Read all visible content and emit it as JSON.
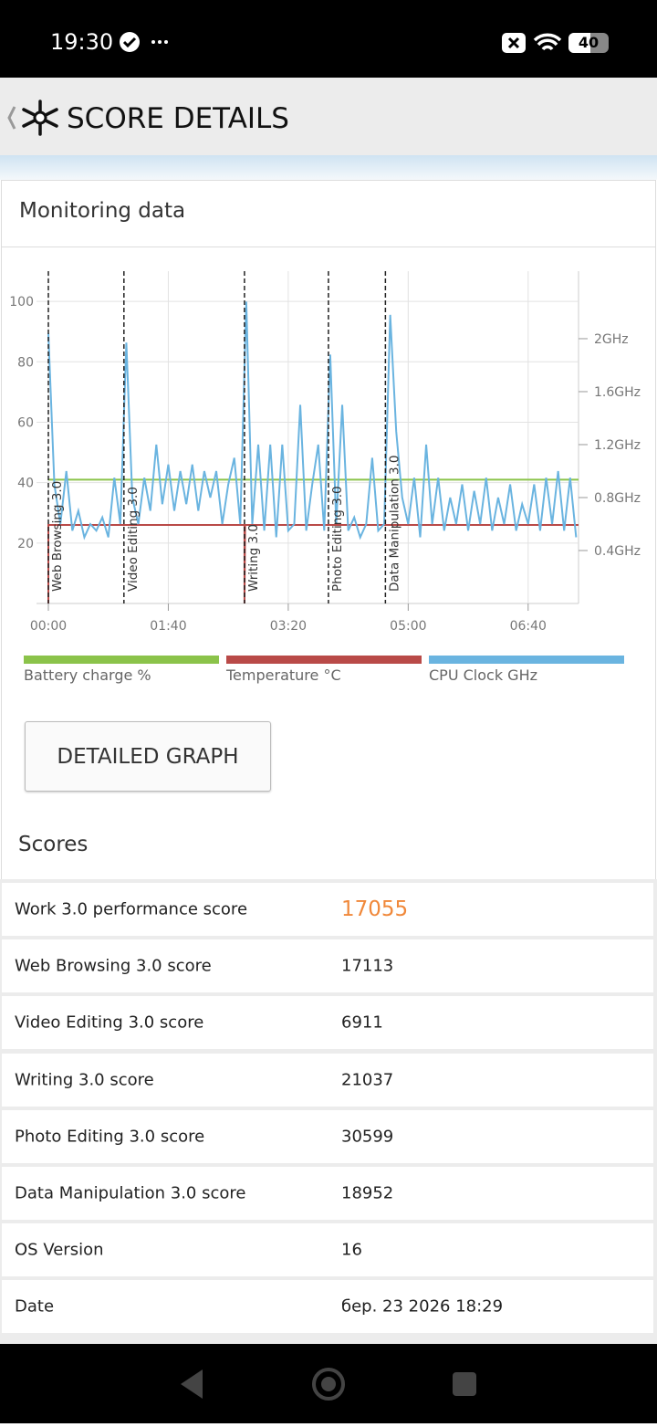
{
  "status_bar": {
    "time": "19:30",
    "battery": "40"
  },
  "header": {
    "title": "SCORE DETAILS"
  },
  "card": {
    "title": "Monitoring data"
  },
  "chart_data": {
    "type": "line",
    "xlim": [
      0,
      442
    ],
    "xticks": [
      {
        "value": 0,
        "label": "00:00"
      },
      {
        "value": 100,
        "label": "01:40"
      },
      {
        "value": 200,
        "label": "03:20"
      },
      {
        "value": 300,
        "label": "05:00"
      },
      {
        "value": 400,
        "label": "06:40"
      }
    ],
    "ylim": [
      0,
      110
    ],
    "yticks": [
      20,
      40,
      60,
      80,
      100
    ],
    "y2lim": [
      0,
      2.51
    ],
    "y2ticks": [
      {
        "value": 0.4,
        "label": "0.4GHz"
      },
      {
        "value": 0.8,
        "label": "0.8GHz"
      },
      {
        "value": 1.2,
        "label": "1.2GHz"
      },
      {
        "value": 1.6,
        "label": "1.6GHz"
      },
      {
        "value": 2,
        "label": "2GHz"
      }
    ],
    "grid": true,
    "legend": "bottom",
    "markers": [
      {
        "x": 0,
        "label": "Web Browsing 3.0"
      },
      {
        "x": 63,
        "label": "Video Editing 3.0"
      },
      {
        "x": 163.5,
        "label": "Writing 3.0"
      },
      {
        "x": 233.5,
        "label": "Photo Editing 3.0"
      },
      {
        "x": 281,
        "label": "Data Manipulation 3.0"
      }
    ],
    "series": [
      {
        "name": "Battery charge %",
        "color": "#8bc34a",
        "x": [
          0,
          442
        ],
        "values": [
          41,
          41
        ]
      },
      {
        "name": "Temperature °C",
        "color": "#b94a48",
        "x": [
          0,
          0,
          163.5,
          163.5,
          164,
          442
        ],
        "values": [
          0,
          26,
          26,
          0,
          26,
          26
        ]
      },
      {
        "name": "CPU Clock GHz",
        "color": "#6ab4e0",
        "axis": "y2",
        "x": [
          0,
          5,
          10,
          15,
          20,
          25,
          30,
          35,
          40,
          45,
          50,
          55,
          60,
          65,
          70,
          75,
          80,
          85,
          90,
          95,
          100,
          105,
          110,
          115,
          120,
          125,
          130,
          135,
          140,
          145,
          150,
          155,
          160,
          165,
          170,
          175,
          180,
          185,
          190,
          195,
          200,
          205,
          210,
          215,
          220,
          225,
          230,
          235,
          240,
          245,
          250,
          255,
          260,
          265,
          270,
          275,
          280,
          285,
          290,
          295,
          300,
          305,
          310,
          315,
          320,
          325,
          330,
          335,
          340,
          345,
          350,
          355,
          360,
          365,
          370,
          375,
          380,
          385,
          390,
          395,
          400,
          405,
          410,
          415,
          420,
          425,
          430,
          435,
          440
        ],
        "values": [
          2.04,
          0.9,
          0.6,
          1.0,
          0.55,
          0.7,
          0.5,
          0.6,
          0.55,
          0.65,
          0.5,
          0.95,
          0.6,
          1.97,
          0.8,
          0.6,
          0.95,
          0.7,
          1.2,
          0.75,
          1.05,
          0.7,
          1.0,
          0.75,
          1.05,
          0.7,
          1.0,
          0.8,
          1.0,
          0.6,
          0.9,
          1.1,
          0.6,
          2.28,
          0.6,
          1.2,
          0.55,
          1.2,
          0.5,
          1.2,
          0.55,
          0.6,
          1.5,
          0.55,
          0.9,
          1.2,
          0.55,
          1.88,
          0.6,
          1.5,
          0.55,
          0.65,
          0.5,
          0.6,
          1.1,
          0.55,
          0.6,
          2.18,
          1.3,
          0.8,
          0.6,
          0.95,
          0.5,
          1.2,
          0.6,
          0.95,
          0.55,
          0.8,
          0.6,
          0.9,
          0.55,
          0.85,
          0.6,
          0.95,
          0.55,
          0.8,
          0.6,
          0.9,
          0.55,
          0.75,
          0.6,
          0.9,
          0.55,
          0.95,
          0.6,
          1.0,
          0.55,
          0.95,
          0.5
        ]
      }
    ]
  },
  "button": {
    "label": "DETAILED GRAPH"
  },
  "scores": {
    "title": "Scores",
    "rows": [
      [
        "Work 3.0 performance score",
        "17055"
      ],
      [
        "Web Browsing 3.0 score",
        "17113"
      ],
      [
        "Video Editing 3.0 score",
        "6911"
      ],
      [
        "Writing 3.0 score",
        "21037"
      ],
      [
        "Photo Editing 3.0 score",
        "30599"
      ],
      [
        "Data Manipulation 3.0 score",
        "18952"
      ],
      [
        "OS Version",
        "16"
      ],
      [
        "Date",
        "бер. 23 2026 18:29"
      ]
    ]
  }
}
